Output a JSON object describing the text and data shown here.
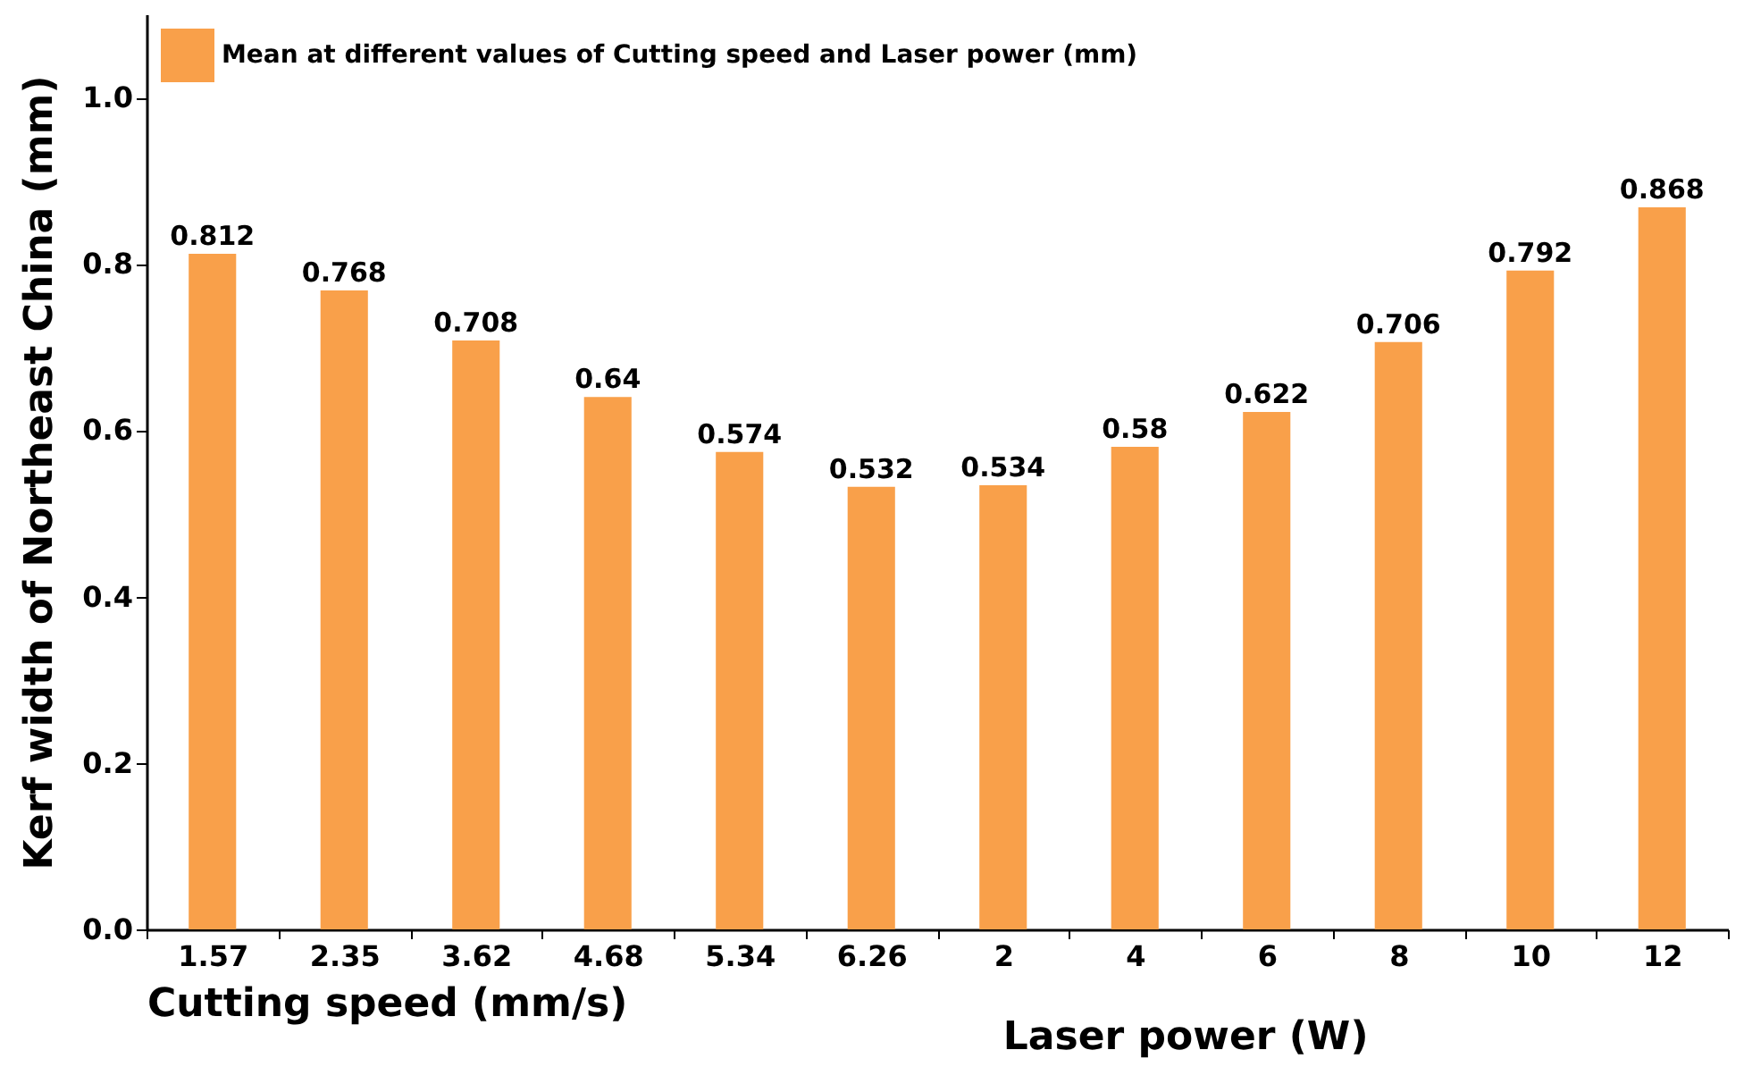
{
  "chart_data": {
    "type": "bar",
    "xlabel": "Cutting speed (mm/s)",
    "ylabel": "Kerf width of Northeast China (mm)",
    "annotations": [
      "Laser power (W)"
    ],
    "categories": [
      "1.57",
      "2.35",
      "3.62",
      "4.68",
      "5.34",
      "6.26",
      "2",
      "4",
      "6",
      "8",
      "10",
      "12"
    ],
    "series": [
      {
        "name": "Mean at different values of Cutting speed and Laser power (mm)",
        "color": "#f9a04a",
        "values": [
          0.812,
          0.768,
          0.708,
          0.64,
          0.574,
          0.532,
          0.534,
          0.58,
          0.622,
          0.706,
          0.792,
          0.868
        ]
      }
    ],
    "ylim": [
      0,
      1.1
    ],
    "yticks": [
      {
        "value": 0,
        "label": "0.0"
      },
      {
        "value": 0.2,
        "label": "0.2"
      },
      {
        "value": 0.4,
        "label": "0.4"
      },
      {
        "value": 0.6,
        "label": "0.6"
      },
      {
        "value": 0.8,
        "label": "0.8"
      },
      {
        "value": 1,
        "label": "1.0"
      }
    ],
    "data_labels": true,
    "legend": "top left",
    "grid": false
  }
}
